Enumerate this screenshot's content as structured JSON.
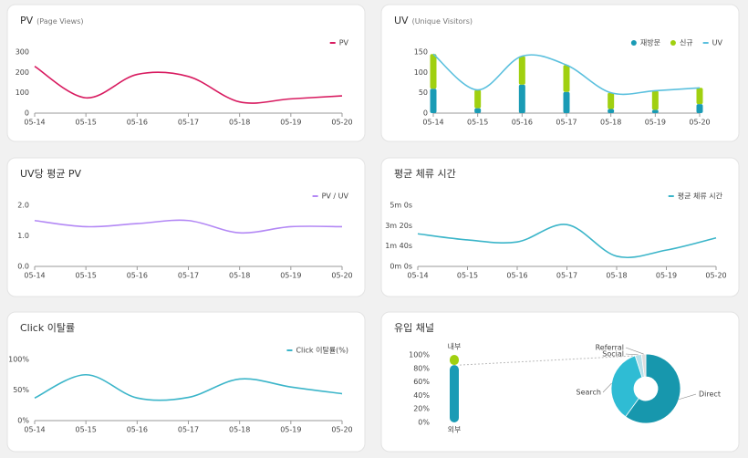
{
  "chart_data": [
    {
      "type": "line",
      "title": "PV",
      "subtitle": "(Page Views)",
      "categories": [
        "05-14",
        "05-15",
        "05-16",
        "05-17",
        "05-18",
        "05-19",
        "05-20"
      ],
      "series": [
        {
          "name": "PV",
          "color": "#d81b60",
          "values": [
            230,
            75,
            190,
            180,
            55,
            70,
            85
          ]
        }
      ],
      "ylim": [
        0,
        300
      ],
      "yticks": [
        0,
        100,
        200,
        300
      ]
    },
    {
      "type": "combo",
      "title": "UV",
      "subtitle": "(Unique Visitors)",
      "categories": [
        "05-14",
        "05-15",
        "05-16",
        "05-17",
        "05-18",
        "05-19",
        "05-20"
      ],
      "series": [
        {
          "name": "재방문",
          "type": "bar",
          "color": "#1a9bb5",
          "values": [
            60,
            12,
            70,
            52,
            10,
            8,
            22
          ]
        },
        {
          "name": "신규",
          "type": "bar",
          "color": "#a0d010",
          "values": [
            85,
            45,
            70,
            66,
            40,
            47,
            40
          ]
        },
        {
          "name": "UV",
          "type": "line",
          "color": "#5bc0de",
          "values": [
            145,
            57,
            140,
            118,
            50,
            55,
            62
          ]
        }
      ],
      "ylim": [
        0,
        150
      ],
      "yticks": [
        0,
        50,
        100,
        150
      ]
    },
    {
      "type": "line",
      "title": "UV당 평균 PV",
      "categories": [
        "05-14",
        "05-15",
        "05-16",
        "05-17",
        "05-18",
        "05-19",
        "05-20"
      ],
      "series": [
        {
          "name": "PV / UV",
          "color": "#b388f5",
          "values": [
            1.5,
            1.3,
            1.4,
            1.5,
            1.1,
            1.3,
            1.3
          ]
        }
      ],
      "ylim": [
        0,
        2
      ],
      "yticks": [
        {
          "value": 0,
          "label": "0.0"
        },
        {
          "value": 1,
          "label": "1.0"
        },
        {
          "value": 2,
          "label": "2.0"
        }
      ]
    },
    {
      "type": "line",
      "title": "평균 체류 시간",
      "categories": [
        "05-14",
        "05-15",
        "05-16",
        "05-17",
        "05-18",
        "05-19",
        "05-20"
      ],
      "series": [
        {
          "name": "평균 체류 시간",
          "color": "#3bb5c9",
          "values": [
            160,
            130,
            120,
            205,
            50,
            80,
            140
          ]
        }
      ],
      "ylim": [
        0,
        300
      ],
      "yticks": [
        {
          "value": 0,
          "label": "0m 0s"
        },
        {
          "value": 100,
          "label": "1m 40s"
        },
        {
          "value": 200,
          "label": "3m 20s"
        },
        {
          "value": 300,
          "label": "5m 0s"
        }
      ]
    },
    {
      "type": "line",
      "title": "Click 이탈률",
      "categories": [
        "05-14",
        "05-15",
        "05-16",
        "05-17",
        "05-18",
        "05-19",
        "05-20"
      ],
      "series": [
        {
          "name": "Click 이탈률(%)",
          "color": "#3bb5c9",
          "values": [
            37,
            75,
            37,
            38,
            68,
            55,
            44
          ]
        }
      ],
      "ylim": [
        0,
        100
      ],
      "yticks": [
        {
          "value": 0,
          "label": "0%"
        },
        {
          "value": 50,
          "label": "50%"
        },
        {
          "value": 100,
          "label": "100%"
        }
      ]
    },
    {
      "type": "pie",
      "title": "유입 채널",
      "categories": [
        "Direct",
        "Search",
        "Social",
        "Referral"
      ],
      "values": [
        60,
        35,
        3,
        2
      ],
      "colors": [
        "#1797ad",
        "#2fbcd4",
        "#b6e0ea",
        "#dddddd"
      ],
      "bar": {
        "series": [
          {
            "name": "외부",
            "color": "#1a9bb5",
            "values": [
              85
            ]
          },
          {
            "name": "내부",
            "color": "#a0d010",
            "values": [
              15
            ]
          }
        ],
        "ylim": [
          0,
          100
        ],
        "yticks": [
          {
            "value": 0,
            "label": "0%"
          },
          {
            "value": 20,
            "label": "20%"
          },
          {
            "value": 40,
            "label": "40%"
          },
          {
            "value": 60,
            "label": "60%"
          },
          {
            "value": 80,
            "label": "80%"
          },
          {
            "value": 100,
            "label": "100%"
          }
        ]
      }
    }
  ]
}
